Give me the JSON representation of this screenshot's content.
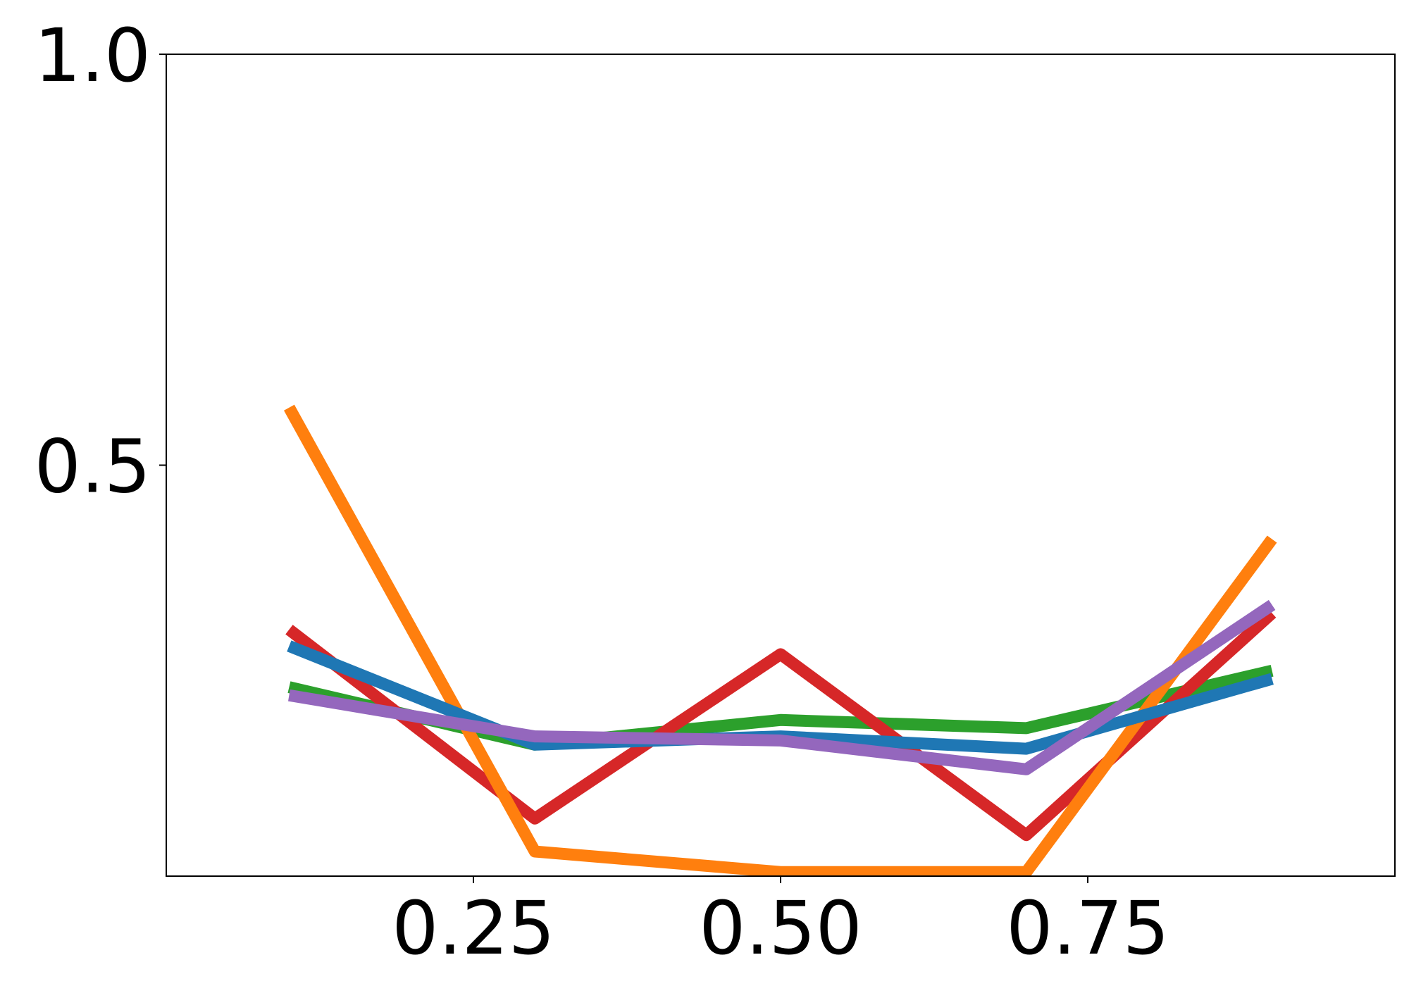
{
  "chart_data": {
    "type": "line",
    "title": "",
    "xlabel": "",
    "ylabel": "",
    "xlim": [
      0,
      1
    ],
    "ylim": [
      0,
      1
    ],
    "grid": false,
    "x_ticks": [
      {
        "value": 0.25,
        "label": "0.25"
      },
      {
        "value": 0.5,
        "label": "0.50"
      },
      {
        "value": 0.75,
        "label": "0.75"
      }
    ],
    "y_ticks": [
      {
        "value": 0.5,
        "label": "0.5"
      },
      {
        "value": 1.0,
        "label": "1.0"
      }
    ],
    "x": [
      0.1,
      0.3,
      0.5,
      0.7,
      0.9
    ],
    "series": [
      {
        "color": "#2ca02c",
        "values": [
          0.23,
          0.16,
          0.19,
          0.18,
          0.25
        ]
      },
      {
        "color": "#d62728",
        "values": [
          0.3,
          0.07,
          0.27,
          0.05,
          0.32
        ]
      },
      {
        "color": "#ff7f0e",
        "values": [
          0.57,
          0.03,
          0.005,
          0.005,
          0.41
        ]
      },
      {
        "color": "#1f77b4",
        "values": [
          0.28,
          0.16,
          0.17,
          0.155,
          0.24
        ]
      },
      {
        "color": "#9467bd",
        "values": [
          0.22,
          0.17,
          0.165,
          0.13,
          0.33
        ]
      }
    ]
  }
}
